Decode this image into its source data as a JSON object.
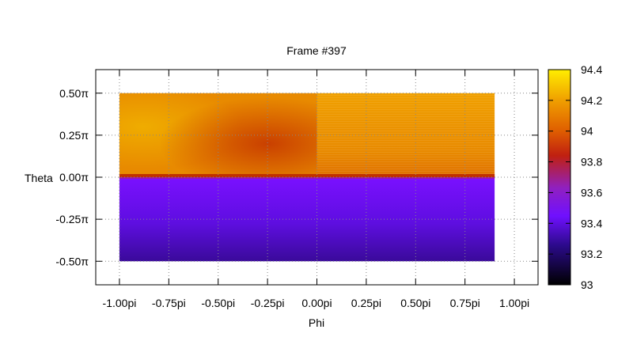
{
  "chart_data": {
    "type": "heatmap",
    "title": "Frame #397",
    "xlabel": "Phi",
    "ylabel": "Theta",
    "x_ticks": [
      {
        "value": -1.0,
        "label": "-1.00pi"
      },
      {
        "value": -0.75,
        "label": "-0.75pi"
      },
      {
        "value": -0.5,
        "label": "-0.50pi"
      },
      {
        "value": -0.25,
        "label": "-0.25pi"
      },
      {
        "value": 0.0,
        "label": "0.00pi"
      },
      {
        "value": 0.25,
        "label": "0.25pi"
      },
      {
        "value": 0.5,
        "label": "0.50pi"
      },
      {
        "value": 0.75,
        "label": "0.75pi"
      },
      {
        "value": 1.0,
        "label": "1.00pi"
      }
    ],
    "y_ticks": [
      {
        "value": 0.5,
        "label": "0.50π"
      },
      {
        "value": 0.25,
        "label": "0.25π"
      },
      {
        "value": 0.0,
        "label": "0.00π"
      },
      {
        "value": -0.25,
        "label": "-0.25π"
      },
      {
        "value": -0.5,
        "label": "-0.50π"
      }
    ],
    "xlim": [
      -1.12,
      1.12
    ],
    "ylim": [
      -0.64,
      0.64
    ],
    "data_extent": {
      "x": [
        -1.0,
        0.9
      ],
      "y": [
        -0.5,
        0.5
      ]
    },
    "grid": true,
    "colorbar": {
      "range": [
        93.0,
        94.4
      ],
      "ticks": [
        {
          "value": 93.0,
          "label": "93"
        },
        {
          "value": 93.2,
          "label": "93.2"
        },
        {
          "value": 93.4,
          "label": "93.4"
        },
        {
          "value": 93.6,
          "label": "93.6"
        },
        {
          "value": 93.8,
          "label": "93.8"
        },
        {
          "value": 94.0,
          "label": "94"
        },
        {
          "value": 94.2,
          "label": "94.2"
        },
        {
          "value": 94.4,
          "label": "94.4"
        }
      ],
      "palette": "gnuplot pm3d black-blue-red-yellow"
    },
    "regions": [
      {
        "name": "upper-hemisphere",
        "y": [
          0.0,
          0.5
        ],
        "value_range": [
          93.9,
          94.2
        ],
        "peak_at": {
          "x": -0.95,
          "y": 0.3,
          "value": 94.2
        },
        "trough_at": {
          "x": -0.2,
          "y": 0.15,
          "value": 93.9
        }
      },
      {
        "name": "lower-hemisphere",
        "y": [
          -0.5,
          0.0
        ],
        "value_range": [
          93.2,
          93.45
        ]
      }
    ]
  }
}
